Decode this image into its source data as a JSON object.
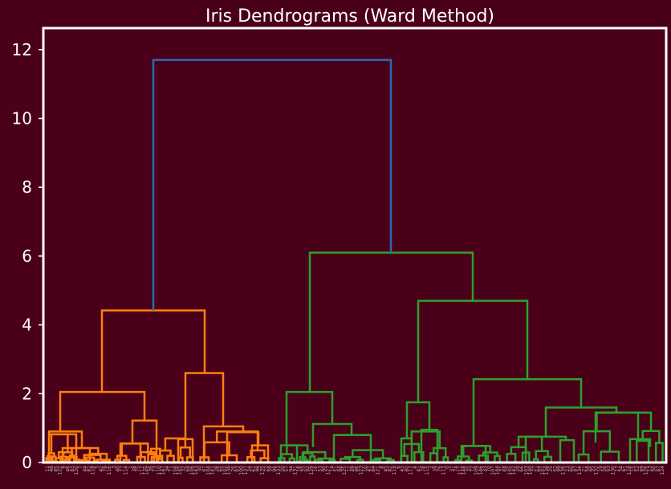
{
  "chart_data": {
    "type": "dendrogram",
    "title": "Iris Dendrograms (Ward Method)",
    "xlabel": "",
    "ylabel": "",
    "ylim": [
      0,
      12.3
    ],
    "yticks": [
      0,
      2,
      4,
      6,
      8,
      10,
      12
    ],
    "grid": false,
    "colors": {
      "background": "#4a0019",
      "axes": "#ffffff",
      "top_link": "#2b6bb5",
      "cluster_1": "#ff7f0e",
      "cluster_2": "#2ca02c"
    },
    "leaf_count": 150,
    "top_merges": [
      {
        "name": "root",
        "height": 11.7,
        "cluster": "top_link"
      },
      {
        "name": "cluster-1",
        "height": 4.42,
        "cluster": "cluster_1"
      },
      {
        "name": "cluster-2",
        "height": 6.1,
        "cluster": "cluster_2"
      },
      {
        "name": "cluster-1-left",
        "height": 2.05,
        "cluster": "cluster_1"
      },
      {
        "name": "cluster-1-right",
        "height": 2.6,
        "cluster": "cluster_1"
      },
      {
        "name": "cluster-2-left",
        "height": 2.05,
        "cluster": "cluster_2"
      },
      {
        "name": "cluster-2-right",
        "height": 4.7,
        "cluster": "cluster_2"
      },
      {
        "name": "cluster-2-right-left",
        "height": 1.75,
        "cluster": "cluster_2"
      },
      {
        "name": "cluster-2-right-right",
        "height": 2.42,
        "cluster": "cluster_2"
      }
    ]
  }
}
